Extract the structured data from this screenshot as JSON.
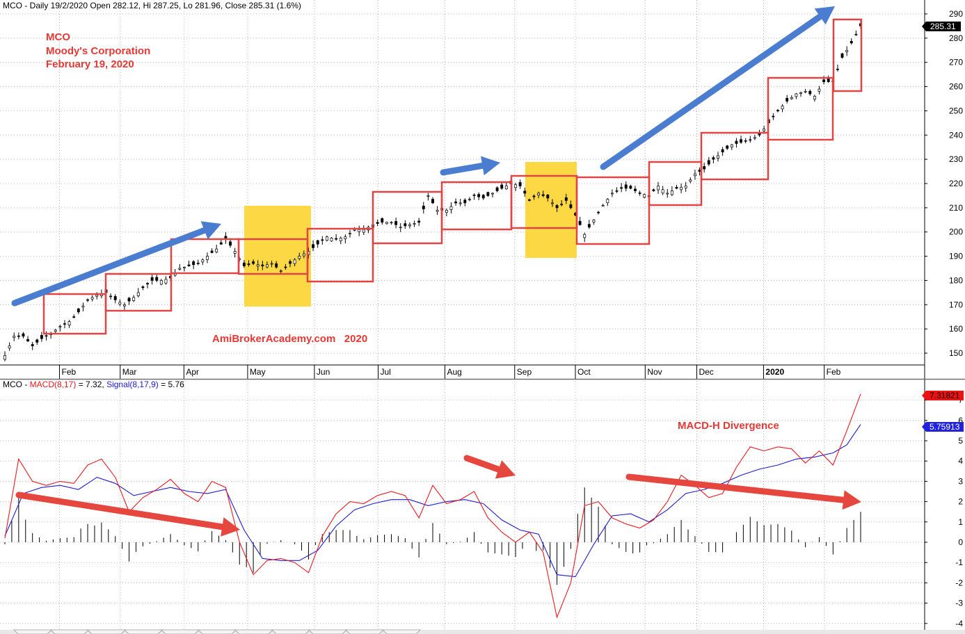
{
  "price_header": "MCO - Daily 19/2/2020 Open 282.12, Hi 287.25, Lo 281.96, Close 285.31 (1.6%)",
  "macd_header": {
    "prefix": "MCO - ",
    "macd_label": "MACD(8,17)",
    "macd_value": " = 7.32, ",
    "signal_label": "Signal(8,17,9)",
    "signal_value": " = 5.76"
  },
  "annotations": {
    "ticker": "MCO",
    "company": "Moody's Corporation",
    "date": "February 19, 2020",
    "watermark": "AmiBrokerAcademy.com   2020",
    "macd_note": "MACD-H Divergence"
  },
  "badges": {
    "last_close": "285.31",
    "macd_last": "7.31821",
    "signal_last": "5.75913"
  },
  "colors": {
    "macd_line": "#e8191e",
    "signal_line": "#1a1ad6",
    "box": "#e04545",
    "highlight": "#fcd73a",
    "trend_up": "#4a7cd0",
    "trend_down": "#e5473f",
    "grid": "#b8b8b8"
  },
  "chart_data": [
    {
      "type": "candlestick",
      "x_ticks": [
        "Feb",
        "Mar",
        "Apr",
        "May",
        "Jun",
        "Jul",
        "Aug",
        "Sep",
        "Oct",
        "Nov",
        "Dec",
        "2020",
        "Feb"
      ],
      "y_ticks": [
        150,
        160,
        170,
        180,
        190,
        200,
        210,
        220,
        230,
        240,
        250,
        260,
        270,
        280,
        290
      ],
      "ylim": [
        145,
        292
      ],
      "grid": true,
      "close_trend": [
        [
          0,
          149
        ],
        [
          4,
          157
        ],
        [
          8,
          157
        ],
        [
          12,
          153
        ],
        [
          16,
          156
        ],
        [
          20,
          158
        ],
        [
          24,
          161
        ],
        [
          28,
          163
        ],
        [
          32,
          167
        ],
        [
          36,
          172
        ],
        [
          40,
          174
        ],
        [
          44,
          175
        ],
        [
          48,
          172
        ],
        [
          52,
          170
        ],
        [
          56,
          173
        ],
        [
          60,
          177
        ],
        [
          64,
          180
        ],
        [
          68,
          180
        ],
        [
          72,
          181
        ],
        [
          76,
          185
        ],
        [
          80,
          186
        ],
        [
          84,
          187
        ],
        [
          88,
          190
        ],
        [
          92,
          193
        ],
        [
          96,
          197
        ],
        [
          100,
          192
        ],
        [
          104,
          186
        ],
        [
          108,
          187
        ],
        [
          112,
          186
        ],
        [
          116,
          187
        ],
        [
          120,
          184
        ],
        [
          124,
          187
        ],
        [
          128,
          190
        ],
        [
          132,
          192
        ],
        [
          136,
          195
        ],
        [
          140,
          198
        ],
        [
          144,
          197
        ],
        [
          148,
          198
        ],
        [
          152,
          201
        ],
        [
          156,
          201
        ],
        [
          160,
          203
        ],
        [
          164,
          204
        ],
        [
          168,
          204
        ],
        [
          172,
          202
        ],
        [
          176,
          203
        ],
        [
          180,
          204
        ],
        [
          184,
          215
        ],
        [
          188,
          209
        ],
        [
          192,
          209
        ],
        [
          196,
          212
        ],
        [
          200,
          212
        ],
        [
          204,
          215
        ],
        [
          208,
          214
        ],
        [
          212,
          216
        ],
        [
          216,
          218
        ],
        [
          220,
          220
        ],
        [
          224,
          219
        ],
        [
          228,
          213
        ],
        [
          232,
          216
        ],
        [
          236,
          214
        ],
        [
          240,
          210
        ],
        [
          244,
          213
        ],
        [
          248,
          207
        ],
        [
          252,
          199
        ],
        [
          256,
          205
        ],
        [
          260,
          211
        ],
        [
          264,
          216
        ],
        [
          268,
          218
        ],
        [
          272,
          218
        ],
        [
          276,
          216
        ],
        [
          280,
          215
        ],
        [
          284,
          219
        ],
        [
          288,
          216
        ],
        [
          292,
          218
        ],
        [
          296,
          219
        ],
        [
          300,
          224
        ],
        [
          304,
          226
        ],
        [
          308,
          230
        ],
        [
          312,
          233
        ],
        [
          316,
          236
        ],
        [
          320,
          237
        ],
        [
          324,
          238
        ],
        [
          328,
          240
        ],
        [
          332,
          245
        ],
        [
          336,
          250
        ],
        [
          340,
          254
        ],
        [
          344,
          257
        ],
        [
          348,
          258
        ],
        [
          352,
          256
        ],
        [
          356,
          262
        ],
        [
          360,
          262
        ],
        [
          364,
          272
        ],
        [
          368,
          278
        ],
        [
          372,
          285
        ]
      ]
    },
    {
      "type": "line",
      "y_ticks": [
        -4,
        -3,
        -2,
        -1,
        0,
        1,
        2,
        3,
        4,
        5,
        6,
        7
      ],
      "ylim": [
        -4.3,
        7.6
      ],
      "grid": true,
      "series": [
        {
          "name": "MACD(8,17)",
          "values": [
            [
              0,
              0.2
            ],
            [
              6,
              4.1
            ],
            [
              12,
              3.0
            ],
            [
              18,
              2.8
            ],
            [
              24,
              3.0
            ],
            [
              30,
              2.9
            ],
            [
              36,
              3.8
            ],
            [
              42,
              4.1
            ],
            [
              48,
              3.2
            ],
            [
              54,
              1.5
            ],
            [
              60,
              2.2
            ],
            [
              66,
              2.6
            ],
            [
              72,
              3.1
            ],
            [
              78,
              2.4
            ],
            [
              84,
              2.0
            ],
            [
              90,
              3.0
            ],
            [
              96,
              2.7
            ],
            [
              102,
              0.0
            ],
            [
              108,
              -1.6
            ],
            [
              114,
              -0.9
            ],
            [
              120,
              -0.8
            ],
            [
              126,
              -1.0
            ],
            [
              132,
              -1.5
            ],
            [
              138,
              0.3
            ],
            [
              144,
              1.4
            ],
            [
              150,
              2.0
            ],
            [
              156,
              1.9
            ],
            [
              162,
              2.3
            ],
            [
              168,
              2.5
            ],
            [
              174,
              2.3
            ],
            [
              180,
              1.2
            ],
            [
              186,
              2.8
            ],
            [
              192,
              1.9
            ],
            [
              198,
              2.1
            ],
            [
              204,
              2.5
            ],
            [
              210,
              1.2
            ],
            [
              216,
              0.5
            ],
            [
              222,
              0.0
            ],
            [
              228,
              0.5
            ],
            [
              234,
              -0.5
            ],
            [
              240,
              -3.7
            ],
            [
              246,
              -2.0
            ],
            [
              252,
              1.8
            ],
            [
              258,
              2.0
            ],
            [
              264,
              1.2
            ],
            [
              270,
              0.9
            ],
            [
              276,
              0.7
            ],
            [
              282,
              1.1
            ],
            [
              288,
              2.0
            ],
            [
              294,
              3.3
            ],
            [
              300,
              2.8
            ],
            [
              306,
              2.2
            ],
            [
              312,
              2.4
            ],
            [
              318,
              3.7
            ],
            [
              324,
              4.7
            ],
            [
              330,
              4.5
            ],
            [
              336,
              4.7
            ],
            [
              342,
              4.6
            ],
            [
              348,
              3.9
            ],
            [
              354,
              4.5
            ],
            [
              360,
              3.8
            ],
            [
              366,
              5.5
            ],
            [
              372,
              7.3
            ]
          ]
        },
        {
          "name": "Signal(8,17,9)",
          "values": [
            [
              0,
              0.3
            ],
            [
              8,
              2.4
            ],
            [
              16,
              2.7
            ],
            [
              24,
              2.8
            ],
            [
              32,
              2.6
            ],
            [
              40,
              3.2
            ],
            [
              48,
              2.9
            ],
            [
              56,
              2.3
            ],
            [
              64,
              2.5
            ],
            [
              72,
              2.7
            ],
            [
              80,
              2.5
            ],
            [
              88,
              2.4
            ],
            [
              96,
              2.6
            ],
            [
              104,
              0.6
            ],
            [
              112,
              -0.8
            ],
            [
              120,
              -0.9
            ],
            [
              128,
              -0.9
            ],
            [
              136,
              -0.4
            ],
            [
              144,
              0.8
            ],
            [
              152,
              1.6
            ],
            [
              160,
              1.9
            ],
            [
              168,
              2.1
            ],
            [
              176,
              2.1
            ],
            [
              184,
              1.8
            ],
            [
              192,
              2.0
            ],
            [
              200,
              2.1
            ],
            [
              208,
              1.9
            ],
            [
              216,
              1.1
            ],
            [
              224,
              0.6
            ],
            [
              232,
              0.4
            ],
            [
              240,
              -1.6
            ],
            [
              248,
              -1.7
            ],
            [
              256,
              -0.1
            ],
            [
              264,
              1.3
            ],
            [
              272,
              1.4
            ],
            [
              280,
              1.0
            ],
            [
              288,
              1.6
            ],
            [
              296,
              2.4
            ],
            [
              304,
              2.6
            ],
            [
              312,
              2.9
            ],
            [
              320,
              3.3
            ],
            [
              328,
              3.6
            ],
            [
              336,
              3.8
            ],
            [
              344,
              4.1
            ],
            [
              352,
              4.2
            ],
            [
              360,
              4.4
            ],
            [
              366,
              4.8
            ],
            [
              372,
              5.8
            ]
          ]
        }
      ]
    }
  ]
}
